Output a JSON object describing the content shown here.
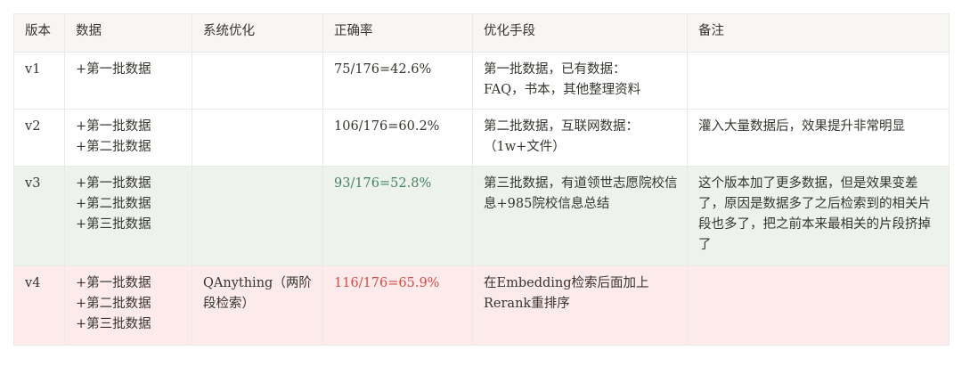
{
  "table": {
    "headers": [
      "版本",
      "数据",
      "系统优化",
      "正确率",
      "优化手段",
      "备注"
    ],
    "rows": [
      {
        "version": "v1",
        "data": "+第一批数据",
        "system": "",
        "accuracy": "75/176=42.6%",
        "method": "第一批数据，已有数据：\nFAQ，书本，其他整理资料",
        "note": "",
        "highlight": "none"
      },
      {
        "version": "v2",
        "data": "+第一批数据\n+第二批数据",
        "system": "",
        "accuracy": "106/176=60.2%",
        "method": "第二批数据，互联网数据：\n（1w+文件）",
        "note": "灌入大量数据后，效果提升非常明显",
        "highlight": "none"
      },
      {
        "version": "v3",
        "data": "+第一批数据\n+第二批数据\n+第三批数据",
        "system": "",
        "accuracy": "93/176=52.8%",
        "method": "第三批数据，有道领世志愿院校信息+985院校信息总结",
        "note": "这个版本加了更多数据，但是效果变差了，原因是数据多了之后检索到的相关片段也多了，把之前本来最相关的片段挤掉了",
        "highlight": "green"
      },
      {
        "version": "v4",
        "data": "+第一批数据\n+第二批数据\n+第三批数据",
        "system": "QAnything（两阶段检索）",
        "accuracy": "116/176=65.9%",
        "method": "在Embedding检索后面加上Rerank重排序",
        "note": "",
        "highlight": "red"
      }
    ]
  },
  "colors": {
    "header_bg": "#f7f6f3",
    "green_row_bg": "#edf3ec",
    "red_row_bg": "#fdebec",
    "green_text": "#448361",
    "red_text": "#d44c47"
  }
}
